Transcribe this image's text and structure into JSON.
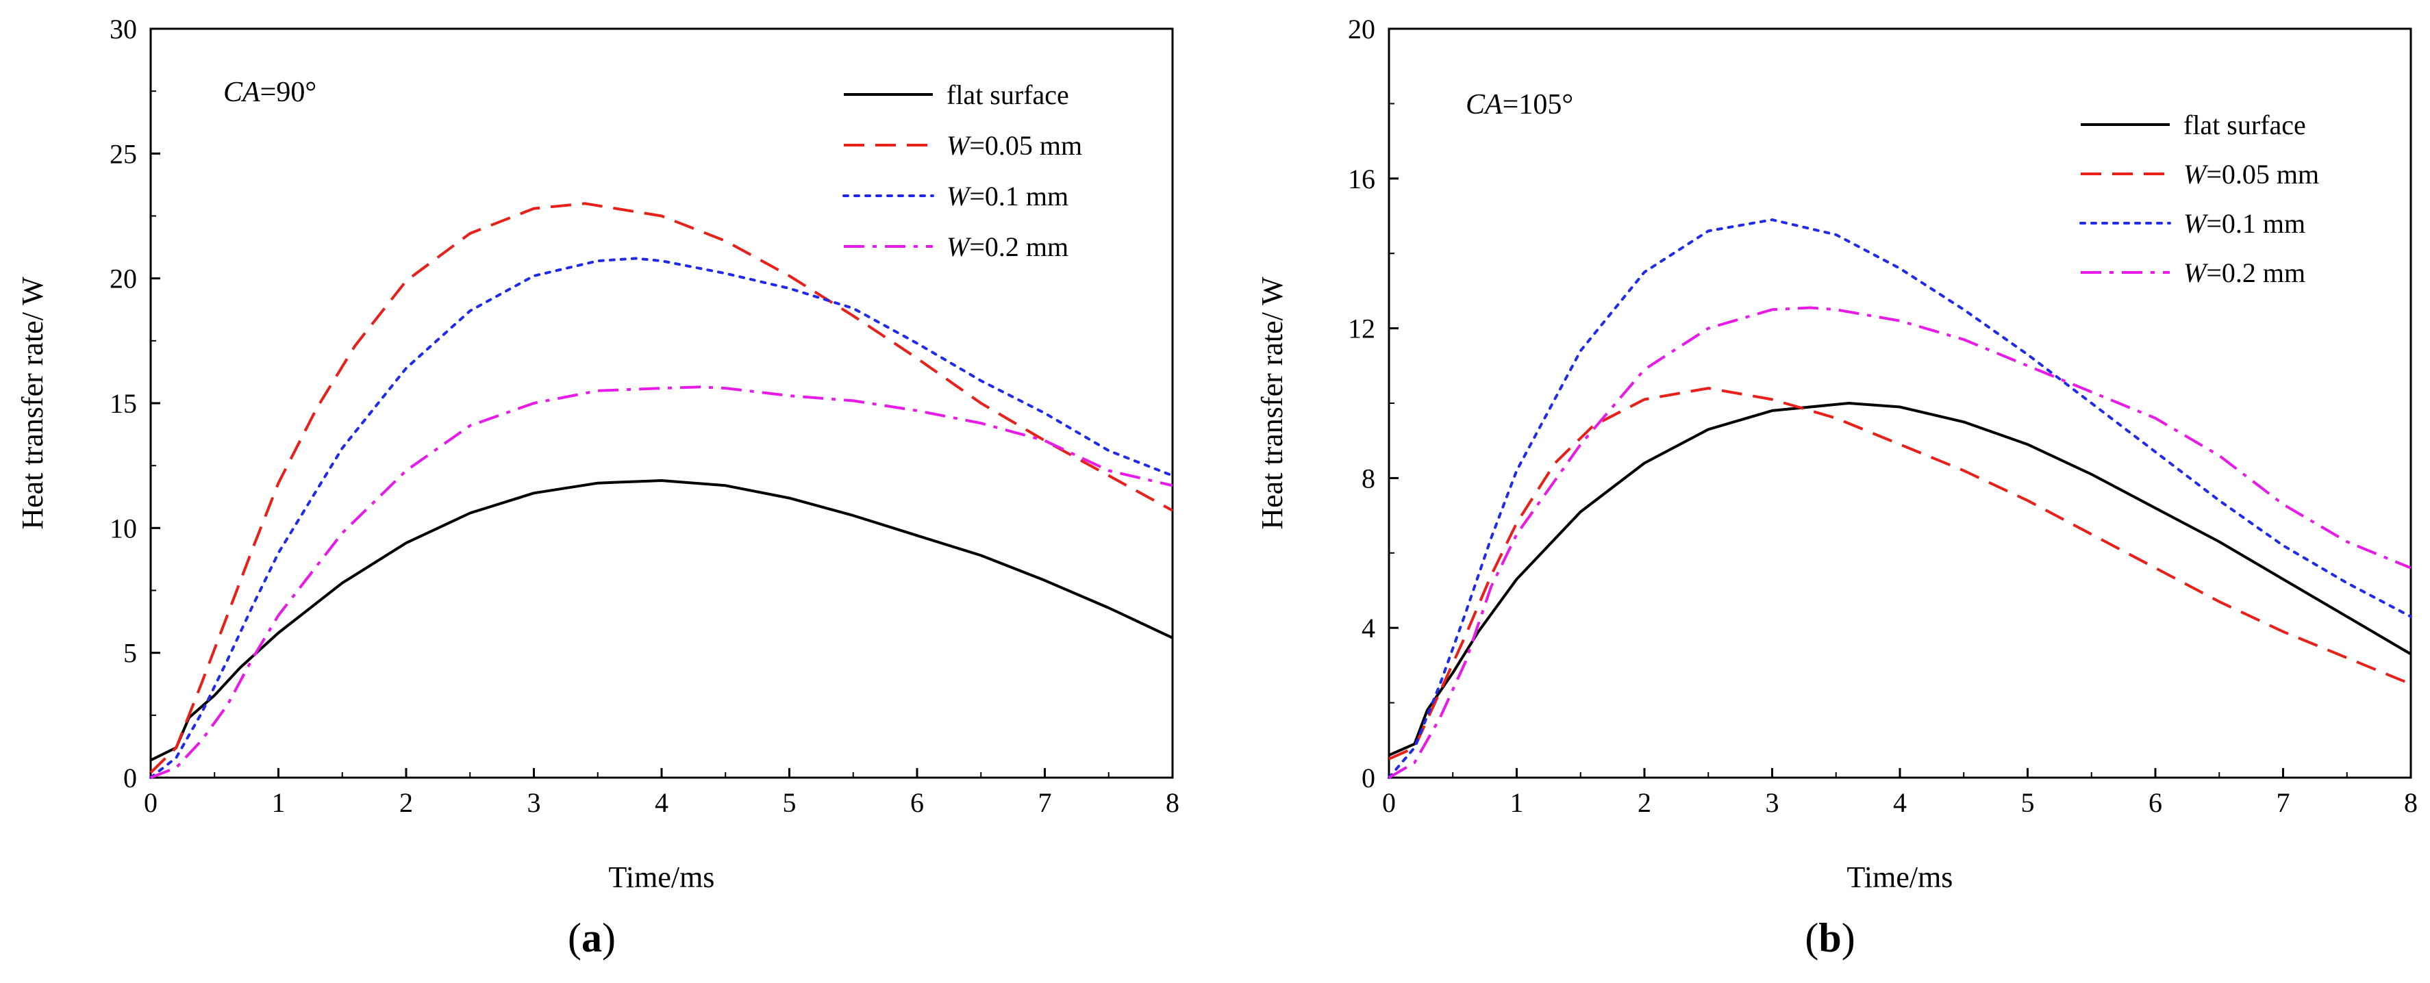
{
  "chart_data": [
    {
      "type": "line",
      "panel_label": "a",
      "annotation": {
        "italic": "CA",
        "rest": "=90°"
      },
      "xlabel": "Time/ms",
      "ylabel": "Heat transfer rate/ W",
      "xlim": [
        0,
        8
      ],
      "ylim": [
        0,
        30
      ],
      "xticks": [
        0,
        1,
        2,
        3,
        4,
        5,
        6,
        7,
        8
      ],
      "yticks": [
        0,
        5,
        10,
        15,
        20,
        25,
        30
      ],
      "legend_position": "top-right",
      "series": [
        {
          "name": "flat surface",
          "label_italic": "",
          "label_rest": "flat surface",
          "color": "#000000",
          "dash": "solid",
          "x": [
            0,
            0.2,
            0.3,
            0.5,
            0.7,
            1.0,
            1.5,
            2.0,
            2.5,
            3.0,
            3.5,
            4.0,
            4.5,
            5.0,
            5.5,
            6.0,
            6.5,
            7.0,
            7.5,
            8.0
          ],
          "y": [
            0.7,
            1.2,
            2.4,
            3.3,
            4.4,
            5.8,
            7.8,
            9.4,
            10.6,
            11.4,
            11.8,
            11.9,
            11.7,
            11.2,
            10.5,
            9.7,
            8.9,
            7.9,
            6.8,
            5.6
          ]
        },
        {
          "name": "W=0.05 mm",
          "label_italic": "W",
          "label_rest": "=0.05 mm",
          "color": "#e8201a",
          "dash": "dash",
          "x": [
            0,
            0.2,
            0.4,
            0.6,
            0.8,
            1.0,
            1.3,
            1.6,
            2.0,
            2.5,
            3.0,
            3.4,
            4.0,
            4.5,
            5.0,
            5.5,
            6.0,
            6.5,
            7.0,
            7.5,
            8.0
          ],
          "y": [
            0.2,
            1.2,
            3.8,
            6.5,
            9.2,
            11.8,
            14.8,
            17.3,
            19.9,
            21.8,
            22.8,
            23.0,
            22.5,
            21.5,
            20.1,
            18.5,
            16.8,
            15.0,
            13.5,
            12.1,
            10.7
          ]
        },
        {
          "name": "W=0.1 mm",
          "label_italic": "W",
          "label_rest": "=0.1 mm",
          "color": "#1f2be8",
          "dash": "dot",
          "x": [
            0,
            0.2,
            0.4,
            0.6,
            0.8,
            1.0,
            1.5,
            2.0,
            2.5,
            3.0,
            3.5,
            3.8,
            4.0,
            4.5,
            5.0,
            5.5,
            6.0,
            6.5,
            7.0,
            7.5,
            8.0
          ],
          "y": [
            0,
            0.8,
            2.6,
            4.7,
            6.9,
            9.0,
            13.2,
            16.4,
            18.7,
            20.1,
            20.7,
            20.8,
            20.7,
            20.2,
            19.6,
            18.8,
            17.4,
            15.9,
            14.6,
            13.1,
            12.1
          ]
        },
        {
          "name": "W=0.2 mm",
          "label_italic": "W",
          "label_rest": "=0.2 mm",
          "color": "#e81ae8",
          "dash": "dashdot",
          "x": [
            0,
            0.2,
            0.4,
            0.6,
            0.8,
            1.0,
            1.5,
            2.0,
            2.5,
            3.0,
            3.5,
            4.0,
            4.3,
            4.5,
            5.0,
            5.5,
            6.0,
            6.5,
            7.0,
            7.5,
            8.0
          ],
          "y": [
            0,
            0.4,
            1.5,
            2.9,
            4.8,
            6.5,
            9.8,
            12.3,
            14.1,
            15.0,
            15.5,
            15.6,
            15.65,
            15.6,
            15.3,
            15.1,
            14.7,
            14.2,
            13.5,
            12.3,
            11.7
          ]
        }
      ]
    },
    {
      "type": "line",
      "panel_label": "b",
      "annotation": {
        "italic": "CA",
        "rest": "=105°"
      },
      "xlabel": "Time/ms",
      "ylabel": "Heat transfer rate/ W",
      "xlim": [
        0,
        8
      ],
      "ylim": [
        0,
        20
      ],
      "xticks": [
        0,
        1,
        2,
        3,
        4,
        5,
        6,
        7,
        8
      ],
      "yticks": [
        0,
        4,
        8,
        12,
        16,
        20
      ],
      "legend_position": "top-right",
      "series": [
        {
          "name": "flat surface",
          "label_italic": "",
          "label_rest": "flat surface",
          "color": "#000000",
          "dash": "solid",
          "x": [
            0,
            0.2,
            0.3,
            0.5,
            0.7,
            1.0,
            1.5,
            2.0,
            2.5,
            3.0,
            3.6,
            4.0,
            4.5,
            5.0,
            5.5,
            6.0,
            6.5,
            7.0,
            7.5,
            8.0
          ],
          "y": [
            0.6,
            0.9,
            1.8,
            2.8,
            3.9,
            5.3,
            7.1,
            8.4,
            9.3,
            9.8,
            10.0,
            9.9,
            9.5,
            8.9,
            8.1,
            7.2,
            6.3,
            5.3,
            4.3,
            3.3
          ]
        },
        {
          "name": "W=0.05 mm",
          "label_italic": "W",
          "label_rest": "=0.05 mm",
          "color": "#e8201a",
          "dash": "dash",
          "x": [
            0,
            0.2,
            0.4,
            0.6,
            0.8,
            1.0,
            1.3,
            1.6,
            2.0,
            2.5,
            3.0,
            3.5,
            4.0,
            4.5,
            5.0,
            5.5,
            6.0,
            6.5,
            7.0,
            7.5,
            8.0
          ],
          "y": [
            0.5,
            0.8,
            2.3,
            3.8,
            5.4,
            6.8,
            8.4,
            9.4,
            10.1,
            10.4,
            10.1,
            9.6,
            8.9,
            8.2,
            7.4,
            6.5,
            5.6,
            4.7,
            3.9,
            3.2,
            2.5
          ]
        },
        {
          "name": "W=0.1 mm",
          "label_italic": "W",
          "label_rest": "=0.1 mm",
          "color": "#1f2be8",
          "dash": "dot",
          "x": [
            0,
            0.2,
            0.4,
            0.6,
            0.8,
            1.0,
            1.5,
            2.0,
            2.5,
            3.0,
            3.5,
            4.0,
            4.5,
            5.0,
            5.5,
            6.0,
            6.5,
            7.0,
            7.5,
            8.0
          ],
          "y": [
            0,
            0.8,
            2.5,
            4.4,
            6.4,
            8.2,
            11.4,
            13.5,
            14.6,
            14.9,
            14.5,
            13.6,
            12.5,
            11.3,
            10.0,
            8.7,
            7.4,
            6.2,
            5.2,
            4.3
          ]
        },
        {
          "name": "W=0.2 mm",
          "label_italic": "W",
          "label_rest": "=0.2 mm",
          "color": "#e81ae8",
          "dash": "dashdot",
          "x": [
            0,
            0.2,
            0.4,
            0.6,
            0.8,
            1.0,
            1.5,
            2.0,
            2.5,
            3.0,
            3.3,
            3.5,
            4.0,
            4.5,
            5.0,
            5.5,
            6.0,
            6.5,
            7.0,
            7.5,
            8.0
          ],
          "y": [
            0,
            0.4,
            1.6,
            3.1,
            5.1,
            6.5,
            8.9,
            10.9,
            12.0,
            12.5,
            12.55,
            12.5,
            12.2,
            11.7,
            11.0,
            10.3,
            9.6,
            8.6,
            7.3,
            6.3,
            5.6
          ]
        }
      ]
    }
  ]
}
